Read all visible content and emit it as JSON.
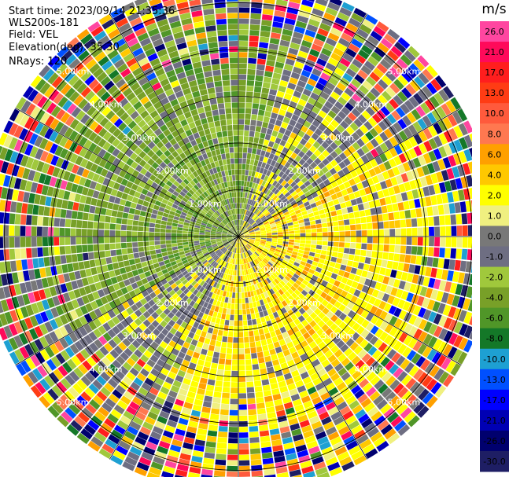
{
  "info": {
    "start_time": "Start time: 2023/09/14 21:35:36",
    "instrument": "WLS200s-181",
    "field": "Field: VEL",
    "elevation": "Elevation(deg): 35.30",
    "nrays": "NRays: 120"
  },
  "colorbar": {
    "unit": "m/s",
    "ticks": [
      "26.0",
      "21.0",
      "17.0",
      "13.0",
      "10.0",
      "8.0",
      "6.0",
      "4.0",
      "2.0",
      "1.0",
      "0.0",
      "-1.0",
      "-2.0",
      "-4.0",
      "-6.0",
      "-8.0",
      "-10.0",
      "-13.0",
      "-17.0",
      "-21.0",
      "-26.0",
      "-30.0"
    ],
    "colors": [
      "#ff46a0",
      "#ff0a5a",
      "#ff1e1e",
      "#ff3c14",
      "#ff5a3c",
      "#ff7850",
      "#ffa000",
      "#ffc800",
      "#ffff00",
      "#f0f080",
      "#787878",
      "#6e6e82",
      "#a0c83c",
      "#78a028",
      "#509628",
      "#147828",
      "#1ea0d2",
      "#0050ff",
      "#0000ff",
      "#0000b4",
      "#00006e",
      "#1e1e64"
    ]
  },
  "chart_data": {
    "type": "heatmap",
    "projection": "polar (PPI)",
    "field": "VEL",
    "nrays": 120,
    "unit": "m/s",
    "range_rings_km": [
      1,
      2,
      3,
      4,
      5
    ],
    "ring_labels": [
      "1.00km",
      "2.00km",
      "3.00km",
      "4.00km",
      "5.00km"
    ],
    "max_range_km": 5.5,
    "value_range": [
      -30,
      26
    ],
    "pattern": {
      "dominant_negative_sector_deg": [
        240,
        360
      ],
      "dominant_positive_sector_deg": [
        60,
        200
      ],
      "noise_beyond_km": 3.2
    }
  }
}
